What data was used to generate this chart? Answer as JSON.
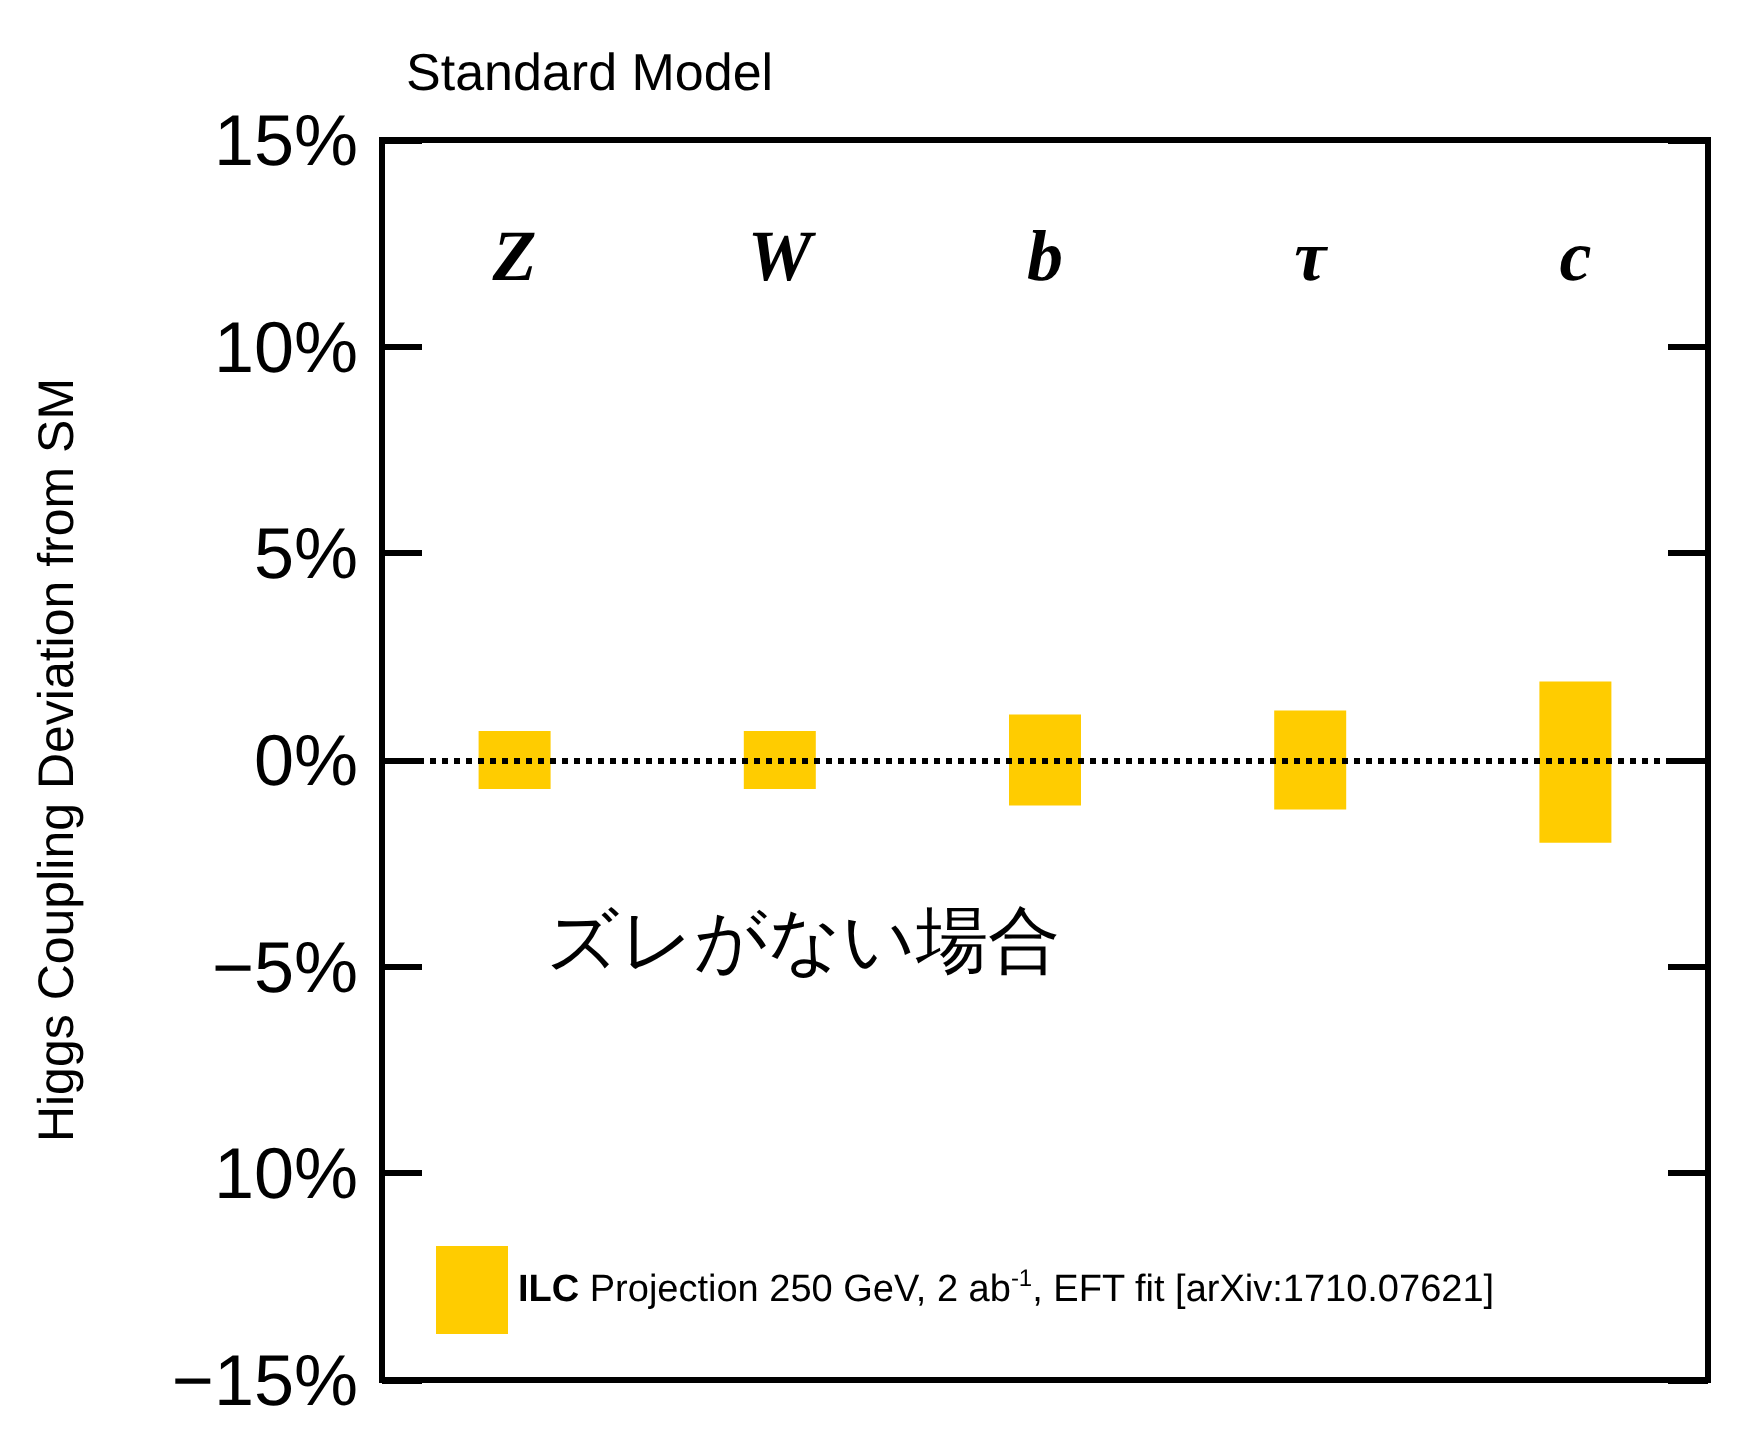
{
  "chart_data": {
    "type": "bar",
    "title": "Standard Model",
    "ylabel": "Higgs Coupling Deviation from SM",
    "categories": [
      "Z",
      "W",
      "b",
      "τ",
      "c"
    ],
    "series": [
      {
        "name": "ILC Projection 250 GeV, 2 ab$^{-1}$, EFT fit [arXiv:1710.07621]",
        "color": "#ffcc00",
        "values": [
          1.4,
          1.4,
          2.2,
          2.4,
          3.9
        ],
        "base": [
          -0.7,
          -0.7,
          -1.1,
          -1.2,
          -2.0
        ]
      }
    ],
    "ylim": [
      -15,
      15
    ],
    "yticks": [
      {
        "value": -15,
        "label": "−15%"
      },
      {
        "value": -10,
        "label": "10%"
      },
      {
        "value": -5,
        "label": "−5%"
      },
      {
        "value": 0,
        "label": "0%"
      },
      {
        "value": 5,
        "label": "5%"
      },
      {
        "value": 10,
        "label": "10%"
      },
      {
        "value": 15,
        "label": "15%"
      }
    ],
    "ref_lines": [
      {
        "axis": "y",
        "value": 0,
        "label": null,
        "color": "#000000",
        "line_style": "dotted"
      }
    ],
    "annotations": [
      "ズレがない場合"
    ],
    "grid": false,
    "legend": "bottom left"
  }
}
